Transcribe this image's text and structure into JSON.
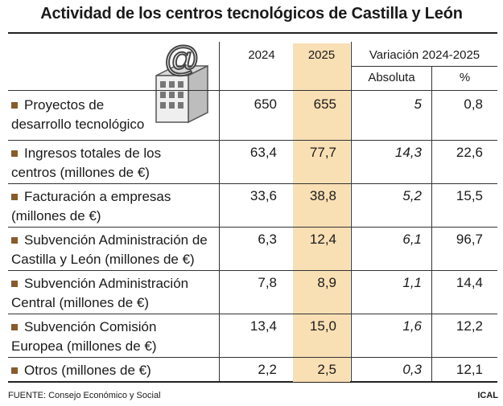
{
  "title": "Actividad de los centros tecnológicos de Castilla y León",
  "headers": {
    "y2024": "2024",
    "y2025": "2025",
    "variation": "Variación 2024-2025",
    "absolute": "Absoluta",
    "percent": "%"
  },
  "rows": [
    {
      "line1": "Proyectos de",
      "line2": "desarrollo tecnológico",
      "v2024": "650",
      "v2025": "655",
      "abs": "5",
      "pct": "0,8"
    },
    {
      "line1": "Ingresos totales de los",
      "line2": "centros (millones de €)",
      "v2024": "63,4",
      "v2025": "77,7",
      "abs": "14,3",
      "pct": "22,6"
    },
    {
      "line1": "Facturación a empresas",
      "line2": "(millones de €)",
      "v2024": "33,6",
      "v2025": "38,8",
      "abs": "5,2",
      "pct": "15,5"
    },
    {
      "line1": "Subvención Administración de",
      "line2": "Castilla y León (millones de €)",
      "v2024": "6,3",
      "v2025": "12,4",
      "abs": "6,1",
      "pct": "96,7"
    },
    {
      "line1": "Subvención Administración",
      "line2": "Central (millones de €)",
      "v2024": "7,8",
      "v2025": "8,9",
      "abs": "1,1",
      "pct": "14,4"
    },
    {
      "line1": "Subvención Comisión",
      "line2": "Europea (millones de €)",
      "v2024": "13,4",
      "v2025": "15,0",
      "abs": "1,6",
      "pct": "12,2"
    },
    {
      "line1": "Otros (millones de €)",
      "line2": "",
      "v2024": "2,2",
      "v2025": "2,5",
      "abs": "0,3",
      "pct": "12,1"
    }
  ],
  "footer": {
    "source": "FUENTE: Consejo Económico y Social",
    "credit": "ICAL"
  },
  "colors": {
    "highlight": "#f9dfb4",
    "bullet": "#8a5a2b"
  },
  "icon": "building-with-at-sign-icon",
  "chart_data": {
    "type": "table",
    "title": "Actividad de los centros tecnológicos de Castilla y León",
    "columns": [
      "2024",
      "2025",
      "Absoluta",
      "%"
    ],
    "categories": [
      "Proyectos de desarrollo tecnológico",
      "Ingresos totales de los centros (millones de €)",
      "Facturación a empresas (millones de €)",
      "Subvención Administración de Castilla y León (millones de €)",
      "Subvención Administración Central (millones de €)",
      "Subvención Comisión Europea (millones de €)",
      "Otros (millones de €)"
    ],
    "series": [
      {
        "name": "2024",
        "values": [
          650,
          63.4,
          33.6,
          6.3,
          7.8,
          13.4,
          2.2
        ]
      },
      {
        "name": "2025",
        "values": [
          655,
          77.7,
          38.8,
          12.4,
          8.9,
          15.0,
          2.5
        ]
      },
      {
        "name": "Absoluta",
        "values": [
          5,
          14.3,
          5.2,
          6.1,
          1.1,
          1.6,
          0.3
        ]
      },
      {
        "name": "%",
        "values": [
          0.8,
          22.6,
          15.5,
          96.7,
          14.4,
          12.2,
          12.1
        ]
      }
    ]
  }
}
